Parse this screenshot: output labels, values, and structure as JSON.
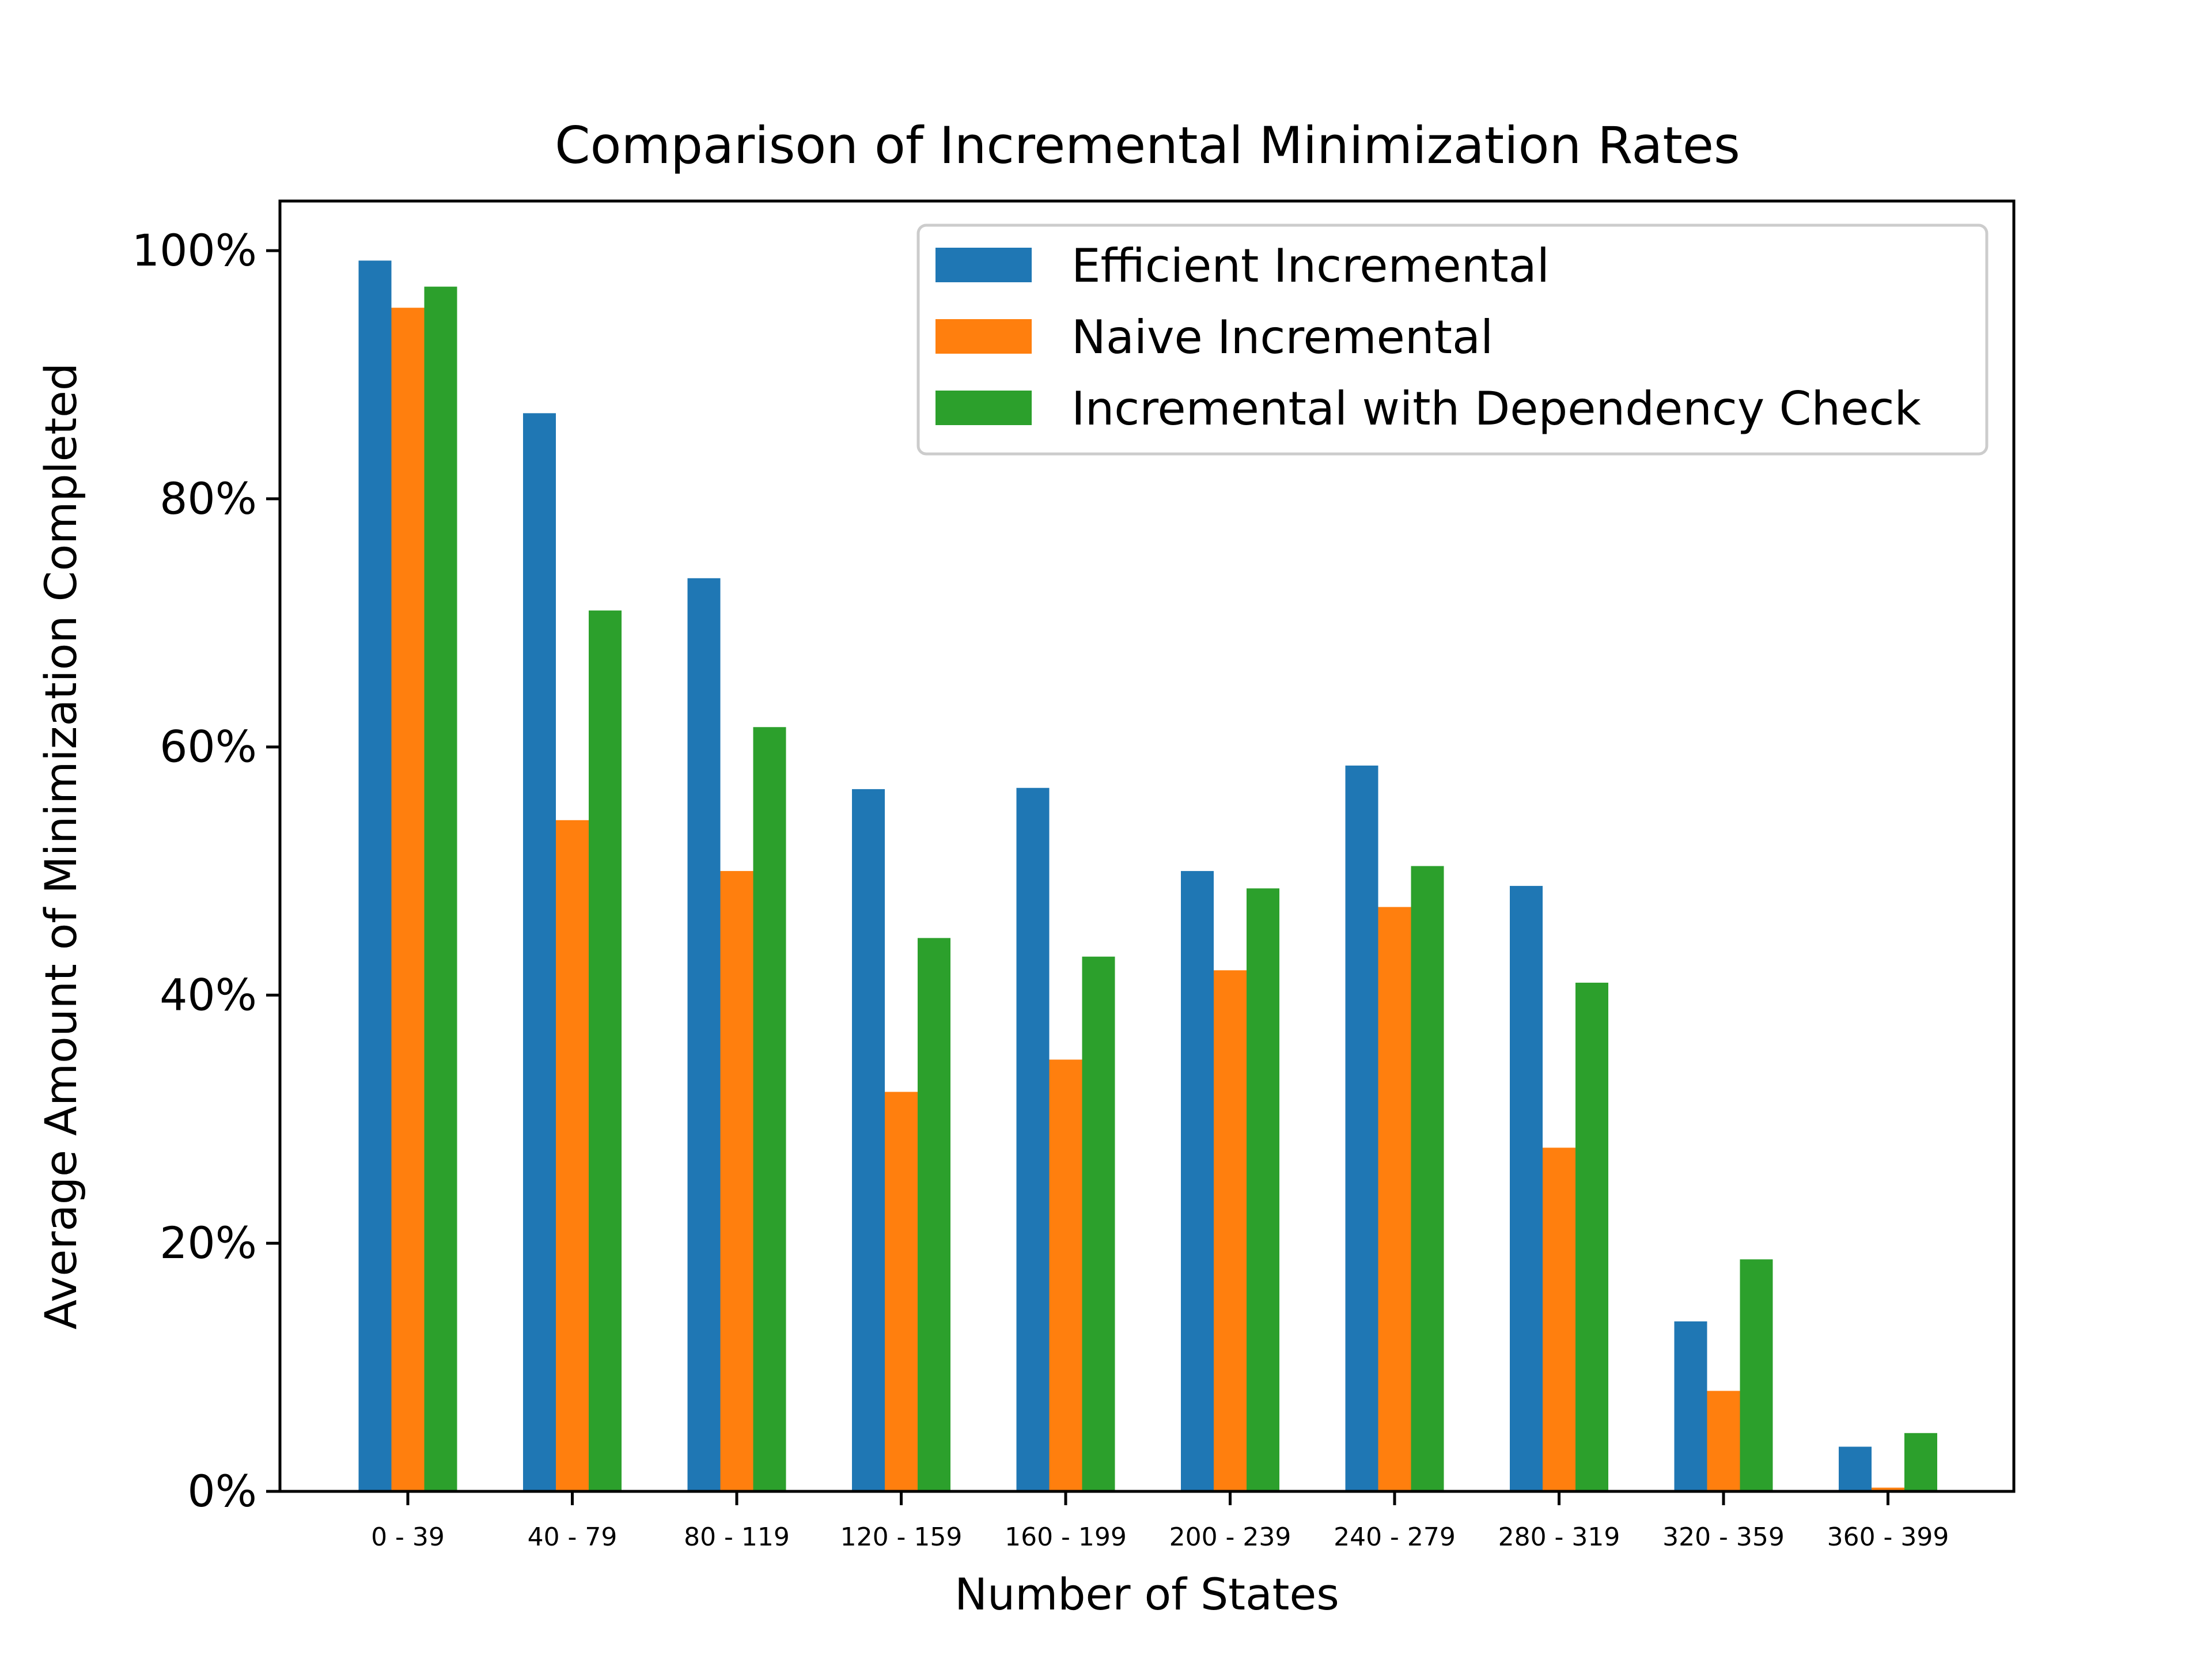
{
  "chart_data": {
    "type": "bar",
    "title": "Comparison of Incremental Minimization Rates",
    "xlabel": "Number of States",
    "ylabel": "Average Amount of Minimization Completed",
    "categories": [
      "0 - 39",
      "40 - 79",
      "80 - 119",
      "120 - 159",
      "160 - 199",
      "200 - 239",
      "240 - 279",
      "280 - 319",
      "320 - 359",
      "360 - 399"
    ],
    "ylim": [
      0,
      1.04
    ],
    "yticks": [
      0,
      0.2,
      0.4,
      0.6,
      0.8,
      1.0
    ],
    "ytick_labels": [
      "0%",
      "20%",
      "40%",
      "60%",
      "80%",
      "100%"
    ],
    "grid": false,
    "legend_position": "upper right",
    "series": [
      {
        "name": "Efficient Incremental",
        "color": "#1f77b4",
        "values": [
          0.992,
          0.869,
          0.736,
          0.566,
          0.567,
          0.5,
          0.585,
          0.488,
          0.137,
          0.036
        ]
      },
      {
        "name": "Naive Incremental",
        "color": "#ff7f0e",
        "values": [
          0.954,
          0.541,
          0.5,
          0.322,
          0.348,
          0.42,
          0.471,
          0.277,
          0.081,
          0.003
        ]
      },
      {
        "name": "Incremental with Dependency Check",
        "color": "#2ca02c",
        "values": [
          0.971,
          0.71,
          0.616,
          0.446,
          0.431,
          0.486,
          0.504,
          0.41,
          0.187,
          0.047
        ]
      }
    ]
  }
}
